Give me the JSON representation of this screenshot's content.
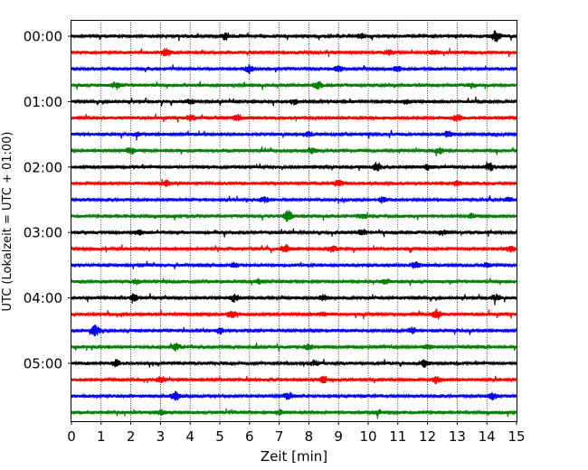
{
  "chart_data": {
    "type": "line",
    "title": "",
    "xlabel": "Zeit  [min]",
    "ylabel": "UTC (Lokalzeit = UTC + 01:00)",
    "xlim": [
      0,
      15
    ],
    "x_ticks": [
      "0",
      "1",
      "2",
      "3",
      "4",
      "5",
      "6",
      "7",
      "8",
      "9",
      "10",
      "11",
      "12",
      "13",
      "14",
      "15"
    ],
    "y_tick_labels": [
      "00:00",
      "01:00",
      "02:00",
      "03:00",
      "04:00",
      "05:00"
    ],
    "y_tick_traces": [
      0,
      4,
      8,
      12,
      16,
      20
    ],
    "grid": "vertical dotted lines at each minute",
    "trace_interval_minutes": 15,
    "trace_count": 24,
    "trace_colors": [
      "#000000",
      "#ff0000",
      "#0000ff",
      "#008000"
    ],
    "series": [
      {
        "start": "00:00",
        "bursts": [
          {
            "x": 5.2,
            "amp": 0.6
          },
          {
            "x": 9.8,
            "amp": 0.4
          },
          {
            "x": 14.3,
            "amp": 1.0
          }
        ]
      },
      {
        "start": "00:15",
        "bursts": [
          {
            "x": 3.2,
            "amp": 0.7
          },
          {
            "x": 10.7,
            "amp": 0.5
          },
          {
            "x": 12.2,
            "amp": 0.4
          }
        ]
      },
      {
        "start": "00:30",
        "bursts": [
          {
            "x": 6.0,
            "amp": 0.7
          },
          {
            "x": 9.0,
            "amp": 0.5
          },
          {
            "x": 11.0,
            "amp": 0.4
          }
        ]
      },
      {
        "start": "00:45",
        "bursts": [
          {
            "x": 1.5,
            "amp": 0.5
          },
          {
            "x": 8.3,
            "amp": 0.6
          },
          {
            "x": 13.5,
            "amp": 0.4
          }
        ]
      },
      {
        "start": "01:00",
        "bursts": [
          {
            "x": 4.0,
            "amp": 0.4
          },
          {
            "x": 7.5,
            "amp": 0.4
          },
          {
            "x": 11.3,
            "amp": 0.4
          }
        ]
      },
      {
        "start": "01:15",
        "bursts": [
          {
            "x": 4.0,
            "amp": 0.5
          },
          {
            "x": 5.6,
            "amp": 0.6
          },
          {
            "x": 13.0,
            "amp": 0.6
          }
        ]
      },
      {
        "start": "01:30",
        "bursts": [
          {
            "x": 2.2,
            "amp": 0.4
          },
          {
            "x": 8.0,
            "amp": 0.4
          },
          {
            "x": 12.7,
            "amp": 0.5
          }
        ]
      },
      {
        "start": "01:45",
        "bursts": [
          {
            "x": 2.0,
            "amp": 0.6
          },
          {
            "x": 8.1,
            "amp": 0.5
          },
          {
            "x": 12.4,
            "amp": 0.5
          }
        ]
      },
      {
        "start": "02:00",
        "bursts": [
          {
            "x": 10.3,
            "amp": 0.8
          },
          {
            "x": 12.0,
            "amp": 0.4
          },
          {
            "x": 14.1,
            "amp": 0.6
          }
        ]
      },
      {
        "start": "02:15",
        "bursts": [
          {
            "x": 3.2,
            "amp": 0.4
          },
          {
            "x": 9.0,
            "amp": 0.6
          },
          {
            "x": 13.0,
            "amp": 0.4
          }
        ]
      },
      {
        "start": "02:30",
        "bursts": [
          {
            "x": 6.5,
            "amp": 0.5
          },
          {
            "x": 10.5,
            "amp": 0.5
          },
          {
            "x": 14.7,
            "amp": 0.4
          }
        ]
      },
      {
        "start": "02:45",
        "bursts": [
          {
            "x": 7.3,
            "amp": 1.0
          },
          {
            "x": 9.8,
            "amp": 0.4
          },
          {
            "x": 13.5,
            "amp": 0.4
          }
        ]
      },
      {
        "start": "03:00",
        "bursts": [
          {
            "x": 2.3,
            "amp": 0.4
          },
          {
            "x": 9.8,
            "amp": 0.5
          },
          {
            "x": 12.5,
            "amp": 0.4
          }
        ]
      },
      {
        "start": "03:15",
        "bursts": [
          {
            "x": 7.2,
            "amp": 0.6
          },
          {
            "x": 8.8,
            "amp": 0.5
          },
          {
            "x": 14.8,
            "amp": 0.5
          }
        ]
      },
      {
        "start": "03:30",
        "bursts": [
          {
            "x": 5.5,
            "amp": 0.4
          },
          {
            "x": 11.6,
            "amp": 0.6
          },
          {
            "x": 14.0,
            "amp": 0.4
          }
        ]
      },
      {
        "start": "03:45",
        "bursts": [
          {
            "x": 2.2,
            "amp": 0.4
          },
          {
            "x": 6.3,
            "amp": 0.4
          },
          {
            "x": 10.6,
            "amp": 0.4
          }
        ]
      },
      {
        "start": "04:00",
        "bursts": [
          {
            "x": 2.1,
            "amp": 0.6
          },
          {
            "x": 5.5,
            "amp": 0.6
          },
          {
            "x": 8.5,
            "amp": 0.5
          },
          {
            "x": 14.3,
            "amp": 0.5
          }
        ]
      },
      {
        "start": "04:15",
        "bursts": [
          {
            "x": 5.4,
            "amp": 0.7
          },
          {
            "x": 8.5,
            "amp": 0.4
          },
          {
            "x": 12.3,
            "amp": 0.8
          }
        ]
      },
      {
        "start": "04:30",
        "bursts": [
          {
            "x": 0.8,
            "amp": 1.0
          },
          {
            "x": 5.0,
            "amp": 0.5
          },
          {
            "x": 11.5,
            "amp": 0.5
          }
        ]
      },
      {
        "start": "04:45",
        "bursts": [
          {
            "x": 3.5,
            "amp": 0.6
          },
          {
            "x": 8.0,
            "amp": 0.5
          },
          {
            "x": 12.0,
            "amp": 0.4
          }
        ]
      },
      {
        "start": "05:00",
        "bursts": [
          {
            "x": 1.5,
            "amp": 0.5
          },
          {
            "x": 8.2,
            "amp": 0.5
          },
          {
            "x": 11.9,
            "amp": 0.6
          }
        ]
      },
      {
        "start": "05:15",
        "bursts": [
          {
            "x": 3.0,
            "amp": 0.5
          },
          {
            "x": 8.5,
            "amp": 0.5
          },
          {
            "x": 12.3,
            "amp": 0.6
          }
        ]
      },
      {
        "start": "05:30",
        "bursts": [
          {
            "x": 3.5,
            "amp": 0.8
          },
          {
            "x": 7.3,
            "amp": 0.6
          },
          {
            "x": 14.2,
            "amp": 0.7
          }
        ]
      },
      {
        "start": "05:45",
        "bursts": [
          {
            "x": 3.0,
            "amp": 0.4
          },
          {
            "x": 7.0,
            "amp": 0.4
          },
          {
            "x": 10.3,
            "amp": 0.4
          }
        ]
      }
    ]
  }
}
